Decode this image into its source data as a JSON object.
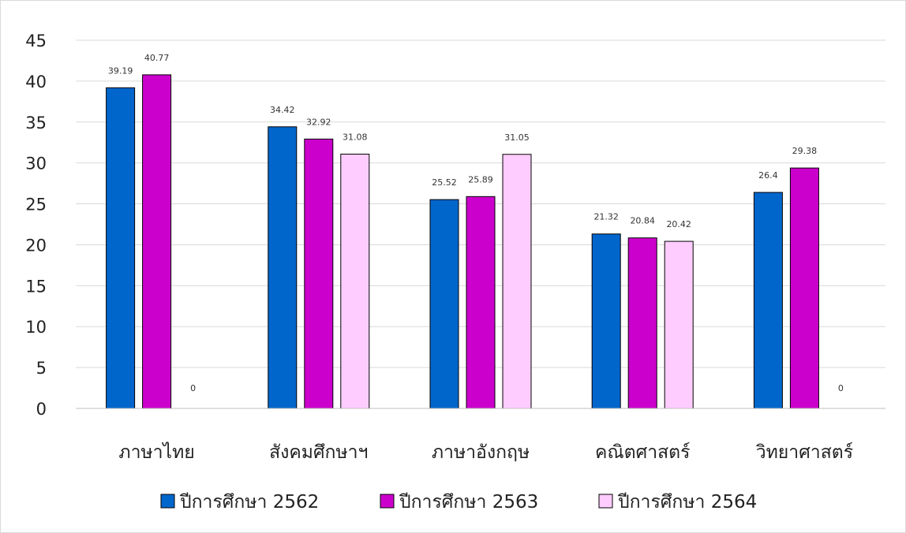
{
  "chart_data": {
    "type": "bar",
    "title": "",
    "xlabel": "",
    "ylabel": "",
    "ylim": [
      0,
      45
    ],
    "yticks": [
      0,
      5,
      10,
      15,
      20,
      25,
      30,
      35,
      40,
      45
    ],
    "grid": true,
    "legend_position": "bottom",
    "categories": [
      "ภาษาไทย",
      "สังคมศึกษาฯ",
      "ภาษาอังกฤษ",
      "คณิตศาสตร์",
      "วิทยาศาสตร์"
    ],
    "series": [
      {
        "name": "ปีการศึกษา 2562",
        "color": "#0066CC",
        "values": [
          39.19,
          34.42,
          25.52,
          21.32,
          26.4
        ]
      },
      {
        "name": "ปีการศึกษา 2563",
        "color": "#CC00CC",
        "values": [
          40.77,
          32.92,
          25.89,
          20.84,
          29.38
        ]
      },
      {
        "name": "ปีการศึกษา 2564",
        "color": "#FFCCFF",
        "values": [
          0,
          31.08,
          31.05,
          20.42,
          0
        ]
      }
    ]
  }
}
